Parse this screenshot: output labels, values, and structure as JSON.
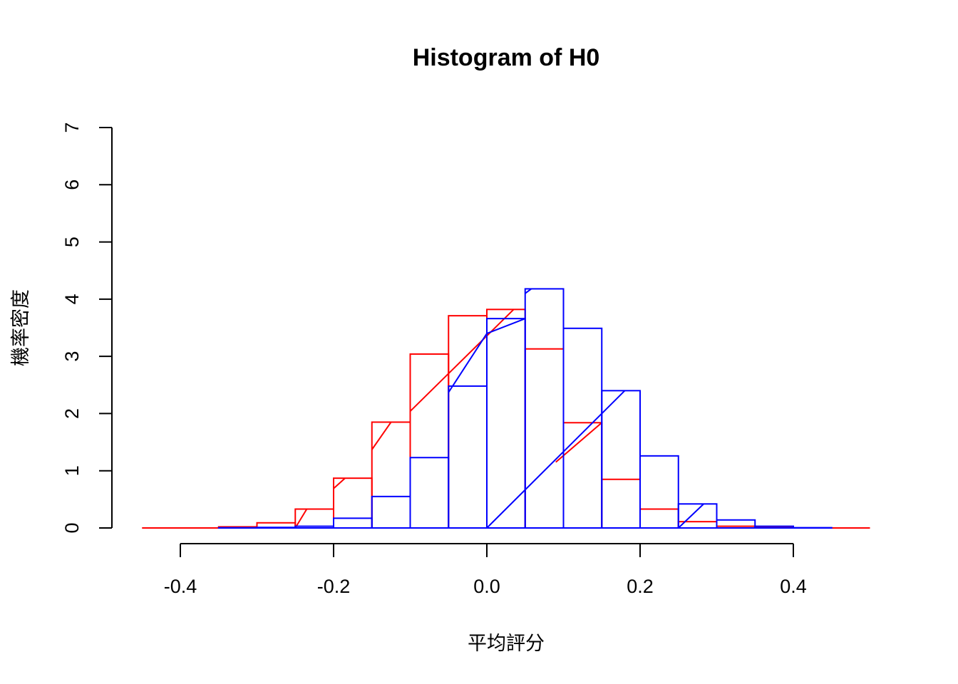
{
  "chart_data": {
    "type": "bar",
    "title": "Histogram of H0",
    "xlabel": "平均評分",
    "ylabel": "機率密度",
    "xlim": [
      -0.45,
      0.5
    ],
    "ylim": [
      0,
      7
    ],
    "x_ticks": [
      "-0.4",
      "-0.2",
      "0.0",
      "0.2",
      "0.4"
    ],
    "x_tick_values": [
      -0.4,
      -0.2,
      0.0,
      0.2,
      0.4
    ],
    "y_ticks": [
      "0",
      "1",
      "2",
      "3",
      "4",
      "5",
      "6",
      "7"
    ],
    "y_tick_values": [
      0,
      1,
      2,
      3,
      4,
      5,
      6,
      7
    ],
    "grid": false,
    "legend": "none",
    "series": [
      {
        "color": "#ff0000",
        "style": "histogram outline",
        "bins": [
          {
            "x0": -0.35,
            "x1": -0.3,
            "density": 0.02
          },
          {
            "x0": -0.3,
            "x1": -0.25,
            "density": 0.09
          },
          {
            "x0": -0.25,
            "x1": -0.2,
            "density": 0.33
          },
          {
            "x0": -0.2,
            "x1": -0.15,
            "density": 0.87
          },
          {
            "x0": -0.15,
            "x1": -0.1,
            "density": 1.85
          },
          {
            "x0": -0.1,
            "x1": -0.05,
            "density": 3.04
          },
          {
            "x0": -0.05,
            "x1": 0.0,
            "density": 3.71
          },
          {
            "x0": 0.0,
            "x1": 0.05,
            "density": 3.82
          },
          {
            "x0": 0.05,
            "x1": 0.1,
            "density": 3.13
          },
          {
            "x0": 0.1,
            "x1": 0.15,
            "density": 1.84
          },
          {
            "x0": 0.15,
            "x1": 0.2,
            "density": 0.85
          },
          {
            "x0": 0.2,
            "x1": 0.25,
            "density": 0.33
          },
          {
            "x0": 0.25,
            "x1": 0.3,
            "density": 0.11
          },
          {
            "x0": 0.3,
            "x1": 0.35,
            "density": 0.03
          },
          {
            "x0": 0.35,
            "x1": 0.4,
            "density": 0.01
          }
        ],
        "baseline": {
          "from": -0.45,
          "to": 0.5
        },
        "diagonal_segments": [
          [
            -0.25,
            0.0,
            -0.235,
            0.33
          ],
          [
            -0.2,
            0.69,
            -0.185,
            0.87
          ],
          [
            -0.15,
            1.37,
            -0.125,
            1.85
          ],
          [
            -0.1,
            2.04,
            0.035,
            3.82
          ],
          [
            0.09,
            1.15,
            0.15,
            1.84
          ]
        ]
      },
      {
        "color": "#0000ff",
        "style": "histogram outline",
        "bins": [
          {
            "x0": -0.35,
            "x1": -0.3,
            "density": 0.004
          },
          {
            "x0": -0.3,
            "x1": -0.25,
            "density": 0.01
          },
          {
            "x0": -0.25,
            "x1": -0.2,
            "density": 0.03
          },
          {
            "x0": -0.2,
            "x1": -0.15,
            "density": 0.17
          },
          {
            "x0": -0.15,
            "x1": -0.1,
            "density": 0.55
          },
          {
            "x0": -0.1,
            "x1": -0.05,
            "density": 1.23
          },
          {
            "x0": -0.05,
            "x1": 0.0,
            "density": 2.48
          },
          {
            "x0": 0.0,
            "x1": 0.05,
            "density": 3.66
          },
          {
            "x0": 0.05,
            "x1": 0.1,
            "density": 4.18
          },
          {
            "x0": 0.1,
            "x1": 0.15,
            "density": 3.49
          },
          {
            "x0": 0.15,
            "x1": 0.2,
            "density": 2.4
          },
          {
            "x0": 0.2,
            "x1": 0.25,
            "density": 1.26
          },
          {
            "x0": 0.25,
            "x1": 0.3,
            "density": 0.42
          },
          {
            "x0": 0.3,
            "x1": 0.35,
            "density": 0.14
          },
          {
            "x0": 0.35,
            "x1": 0.4,
            "density": 0.03
          },
          {
            "x0": 0.4,
            "x1": 0.45,
            "density": 0.005
          }
        ],
        "baseline": {
          "from": -0.35,
          "to": 0.45
        },
        "diagonal_segments": [
          [
            -0.05,
            2.37,
            0.0,
            3.4
          ],
          [
            0.0,
            3.4,
            0.05,
            3.66
          ],
          [
            0.05,
            4.1,
            0.058,
            4.18
          ],
          [
            0.0,
            0.0,
            0.18,
            2.4
          ],
          [
            0.25,
            0.0,
            0.283,
            0.42
          ]
        ]
      }
    ]
  }
}
